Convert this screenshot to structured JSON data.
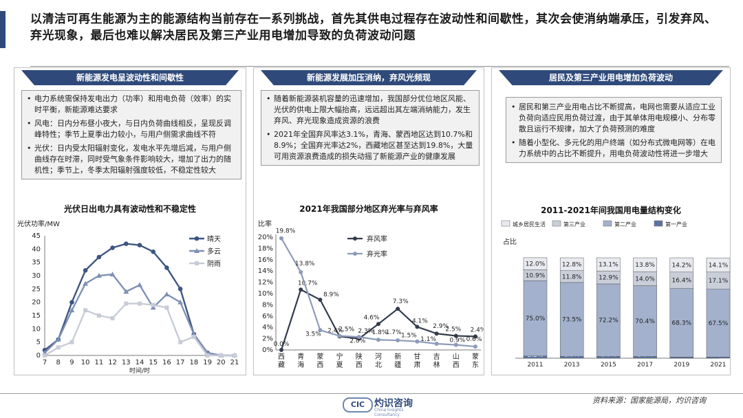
{
  "headline": "以清洁可再生能源为主的能源结构当前存在一系列挑战，首先其供电过程存在波动性和间歇性，其次会使消纳端承压，引发弃风、弃光现象，最后也难以解决居民及第三产业用电增加导致的负荷波动问题",
  "panels": [
    {
      "title": "新能源发电呈波动性和间歇性",
      "bullets": [
        "电力系统需保持发电出力（功率）和用电负荷（效率）的实时平衡，新能源难达要求",
        "风电：日内分布昼小夜大，与日内负荷曲线相反，呈现反调峰特性；季节上夏季出力较小，与用户侧需求曲线不符",
        "光伏：日内受太阳辐射变化，发电水平先增后减，与用户侧曲线存在时滞，同时受气象条件影响较大，增加了出力的随机性；季节上，冬季太阳辐射强度较低，不稳定性较大"
      ]
    },
    {
      "title": "新能源发展加压消纳，弃风光频现",
      "bullets": [
        "随着新能源装机容量的迅速增加，我国部分优位地区风能、光伏的供电上限大幅抬高，远远超出其左端消纳能力，发生弃风、弃光现象造成资源的浪费",
        "2021年全国弃风率达3.1%，青海、蒙西地区达到10.7%和8.9%；全国弃光率达2%，西藏地区甚至达到19.8%，大量可用资源浪费造成的损失动摇了新能源产业的健康发展"
      ]
    },
    {
      "title": "居民及第三产业用电增加负荷波动",
      "bullets": [
        "居民和第三产业用电占比不断提高，电网也需要从适应工业负荷向适应民用负荷过渡，由于其单体用电规模小、分布零散且运行不规律，加大了负荷预测的难度",
        "随着小型化、多元化的用户终端（如分布式微电网等）在电力系统中的占比不断提升，用电负荷波动性将进一步增大"
      ]
    }
  ],
  "chart_data": [
    {
      "type": "line",
      "title": "光伏日出电力具有波动性和不稳定性",
      "xlabel": "时间/时",
      "ylabel": "光伏功率/MW",
      "x": [
        7,
        8,
        9,
        10,
        11,
        12,
        13,
        14,
        15,
        16,
        17,
        18,
        19,
        20,
        21
      ],
      "ylim": [
        0,
        45
      ],
      "yticks": [
        0,
        5,
        10,
        15,
        20,
        25,
        30,
        35,
        40,
        45
      ],
      "series": [
        {
          "name": "晴天",
          "values": [
            2,
            6,
            20,
            32,
            37,
            40.5,
            42,
            41.5,
            39,
            33,
            25,
            8,
            1,
            0,
            0
          ],
          "color": "#3d5580",
          "marker": "circle"
        },
        {
          "name": "多云",
          "values": [
            1,
            6,
            17,
            27,
            30,
            30.5,
            24,
            26.5,
            18,
            23,
            20,
            8,
            1,
            0,
            0
          ],
          "color": "#7e90b5",
          "marker": "triangle"
        },
        {
          "name": "阴雨",
          "values": [
            0,
            3,
            5,
            17,
            15,
            14,
            19.5,
            19.5,
            19,
            18,
            5,
            7,
            0,
            0,
            0
          ],
          "color": "#c7ccd6",
          "marker": "square"
        }
      ]
    },
    {
      "type": "line",
      "title": "2021年我国部分地区弃光率与弃风率",
      "ylabel": "比率",
      "categories": [
        "西藏",
        "青海",
        "蒙西",
        "宁夏",
        "陕西",
        "河北",
        "新疆",
        "甘肃",
        "吉林",
        "山西",
        "蒙东"
      ],
      "ylim": [
        0,
        20
      ],
      "yticks": [
        "0%",
        "2%",
        "4%",
        "6%",
        "8%",
        "10%",
        "12%",
        "14%",
        "16%",
        "18%",
        "20%"
      ],
      "series": [
        {
          "name": "弃风率",
          "values": [
            0.0,
            10.7,
            8.9,
            2.4,
            2.0,
            4.6,
            7.3,
            4.1,
            2.9,
            2.5,
            2.4
          ],
          "labels": [
            "0.0%",
            "10.7%",
            "8.9%",
            "2.4%",
            "2.0%",
            "4.6%",
            "7.3%",
            "4.1%",
            "2.9%",
            "2.5%",
            "2.4%"
          ],
          "color": "#333c4d"
        },
        {
          "name": "弃光率",
          "values": [
            19.8,
            13.8,
            3.5,
            2.5,
            2.3,
            1.8,
            1.7,
            1.5,
            1.1,
            0.9,
            0.6
          ],
          "labels": [
            "19.8%",
            "13.8%",
            "3.5%",
            "2.5%",
            "2.3%",
            "1.8%",
            "1.7%",
            "1.5%",
            "1.1%",
            "0.9%",
            "0.6%"
          ],
          "color": "#8c9bb8"
        }
      ]
    },
    {
      "type": "bar",
      "stacked": true,
      "title": "2011-2021年间我国用电量结构变化",
      "ylabel": "占比",
      "categories": [
        "2011",
        "2013",
        "2015",
        "2017",
        "2019",
        "2021"
      ],
      "series": [
        {
          "name": "城乡居民生活",
          "values": [
            12.0,
            12.8,
            13.1,
            13.8,
            14.2,
            14.1
          ],
          "labels": [
            "12.0%",
            "12.8%",
            "13.1%",
            "13.8%",
            "14.2%",
            "14.1%"
          ],
          "color": "#e8eaf0"
        },
        {
          "name": "第三产业",
          "values": [
            10.9,
            11.8,
            12.9,
            14.0,
            16.4,
            17.1
          ],
          "labels": [
            "10.9%",
            "11.8%",
            "12.9%",
            "14.0%",
            "16.4%",
            "17.1%"
          ],
          "color": "#c9ced9"
        },
        {
          "name": "第二产业",
          "values": [
            75.0,
            73.5,
            72.2,
            70.4,
            68.3,
            67.5
          ],
          "labels": [
            "75.0%",
            "73.5%",
            "72.2%",
            "70.4%",
            "68.3%",
            "67.5%"
          ],
          "color": "#a3b1cc"
        },
        {
          "name": "第一产业",
          "values": [
            2.2,
            1.9,
            1.8,
            1.8,
            1.1,
            1.2
          ],
          "labels": [
            "2.2%",
            "1.9%",
            "1.8%",
            "1.8%",
            "1.1%",
            "1.2%"
          ],
          "color": "#5a73a3"
        }
      ]
    }
  ],
  "footer": {
    "logo_mark": "CIC",
    "logo_text": "灼识咨询",
    "logo_sub": "China Insights Consultancy",
    "source": "资料来源：国家能源局，灼识咨询"
  },
  "colors": {
    "accent": "#2f4a7a"
  }
}
